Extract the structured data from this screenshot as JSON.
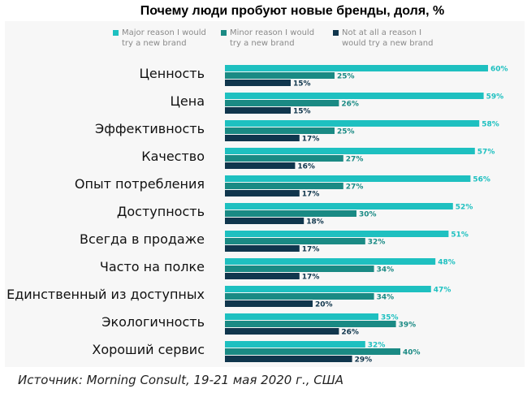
{
  "colors": {
    "major": "#1ec0c0",
    "minor": "#1a8a84",
    "none": "#10364d",
    "label_major": "#1ec0c0",
    "label_minor": "#1a8a84",
    "label_none": "#10364d"
  },
  "chart_data": {
    "type": "bar",
    "orientation": "horizontal",
    "title": "Почему люди пробуют новые бренды, доля, %",
    "categories": [
      "Ценность",
      "Цена",
      "Эффективность",
      "Качество",
      "Опыт потребления",
      "Доступность",
      "Всегда в продаже",
      "Часто на полке",
      "Единственный из доступных",
      "Экологичность",
      "Хороший сервис"
    ],
    "series": [
      {
        "name": "Major reason I would try a new brand",
        "values": [
          60,
          59,
          58,
          57,
          56,
          52,
          51,
          48,
          47,
          35,
          32
        ]
      },
      {
        "name": "Minor reason I would try a new brand",
        "values": [
          25,
          26,
          25,
          27,
          27,
          30,
          32,
          34,
          34,
          39,
          40
        ]
      },
      {
        "name": "Not at all a reason I would try a new brand",
        "values": [
          15,
          15,
          17,
          16,
          17,
          18,
          17,
          17,
          20,
          26,
          29
        ]
      }
    ],
    "value_suffix": "%",
    "xlim": [
      0,
      60
    ],
    "legend": "top",
    "grid": false
  },
  "source": "Источник: Morning Consult, 19-21 мая 2020 г., США"
}
